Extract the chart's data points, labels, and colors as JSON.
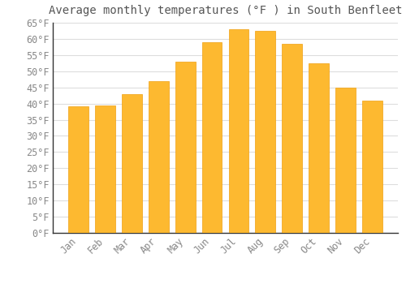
{
  "title": "Average monthly temperatures (°F ) in South Benfleet",
  "months": [
    "Jan",
    "Feb",
    "Mar",
    "Apr",
    "May",
    "Jun",
    "Jul",
    "Aug",
    "Sep",
    "Oct",
    "Nov",
    "Dec"
  ],
  "values": [
    39.2,
    39.5,
    43.0,
    47.0,
    53.0,
    59.0,
    63.0,
    62.5,
    58.5,
    52.5,
    45.0,
    41.0
  ],
  "bar_color_main": "#FDB930",
  "bar_color_edge": "#F0A010",
  "background_color": "#FFFFFF",
  "grid_color": "#DDDDDD",
  "text_color": "#888888",
  "title_color": "#555555",
  "ylim": [
    0,
    65
  ],
  "yticks": [
    0,
    5,
    10,
    15,
    20,
    25,
    30,
    35,
    40,
    45,
    50,
    55,
    60,
    65
  ],
  "title_fontsize": 10,
  "tick_fontsize": 8.5,
  "bar_width": 0.75
}
